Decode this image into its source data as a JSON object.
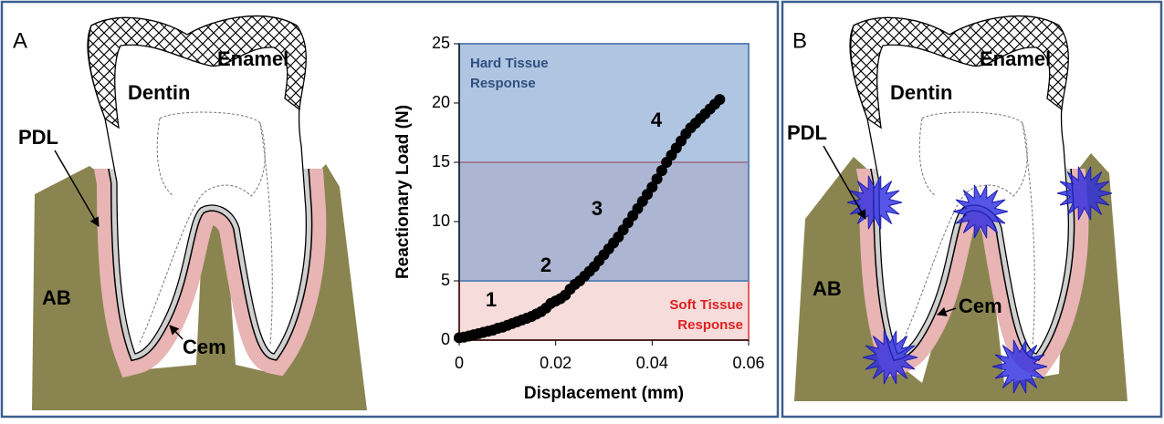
{
  "panel_a": {
    "label": "A",
    "enamel": "Enamel",
    "dentin": "Dentin",
    "pdl": "PDL",
    "ab": "AB",
    "cem": "Cem"
  },
  "panel_b": {
    "label": "B",
    "enamel": "Enamel",
    "dentin": "Dentin",
    "pdl": "PDL",
    "ab": "AB",
    "cem": "Cem"
  },
  "chart_data": {
    "type": "scatter",
    "x_label": "Displacement (mm)",
    "y_label": "Reactionary Load (N)",
    "x": [
      0,
      0.001,
      0.002,
      0.003,
      0.004,
      0.005,
      0.006,
      0.007,
      0.008,
      0.009,
      0.01,
      0.011,
      0.012,
      0.013,
      0.014,
      0.015,
      0.016,
      0.017,
      0.018,
      0.019,
      0.02,
      0.021,
      0.022,
      0.023,
      0.024,
      0.025,
      0.026,
      0.027,
      0.028,
      0.029,
      0.03,
      0.031,
      0.032,
      0.033,
      0.034,
      0.035,
      0.036,
      0.037,
      0.038,
      0.039,
      0.04,
      0.041,
      0.042,
      0.043,
      0.044,
      0.045,
      0.046,
      0.047,
      0.048,
      0.049,
      0.05,
      0.051,
      0.052,
      0.053,
      0.054
    ],
    "values": [
      0.2,
      0.25,
      0.35,
      0.45,
      0.55,
      0.65,
      0.75,
      0.85,
      1.0,
      1.1,
      1.25,
      1.4,
      1.55,
      1.7,
      1.85,
      2.0,
      2.2,
      2.4,
      2.7,
      3.1,
      3.3,
      3.5,
      3.8,
      4.3,
      4.7,
      5.0,
      5.4,
      5.8,
      6.2,
      6.7,
      7.2,
      7.7,
      8.2,
      8.7,
      9.3,
      9.9,
      10.5,
      11.1,
      11.7,
      12.3,
      12.9,
      13.6,
      14.3,
      15.0,
      15.6,
      16.2,
      16.8,
      17.4,
      17.9,
      18.3,
      18.7,
      19.1,
      19.5,
      19.9,
      20.3
    ],
    "color": "#000000",
    "xlim": [
      0,
      0.06
    ],
    "xticks": [
      0,
      0.02,
      0.04,
      0.06
    ],
    "ylim": [
      0,
      25
    ],
    "yticks": [
      0,
      5,
      10,
      15,
      20,
      25
    ],
    "regions": [
      {
        "label_lines": [
          "Soft Tissue",
          "Response"
        ],
        "ymin": 0,
        "ymax": 15,
        "color": "#f2c4c4",
        "edge": "#e06060",
        "text_color": "#e02020"
      },
      {
        "label_lines": [
          "Hard Tissue",
          "Response"
        ],
        "ymin": 5,
        "ymax": 25,
        "color": "#6f96c8",
        "edge": "#5f86b8",
        "text_color": "#2f4f7f"
      }
    ],
    "annotations": [
      "1",
      "2",
      "3",
      "4"
    ]
  }
}
